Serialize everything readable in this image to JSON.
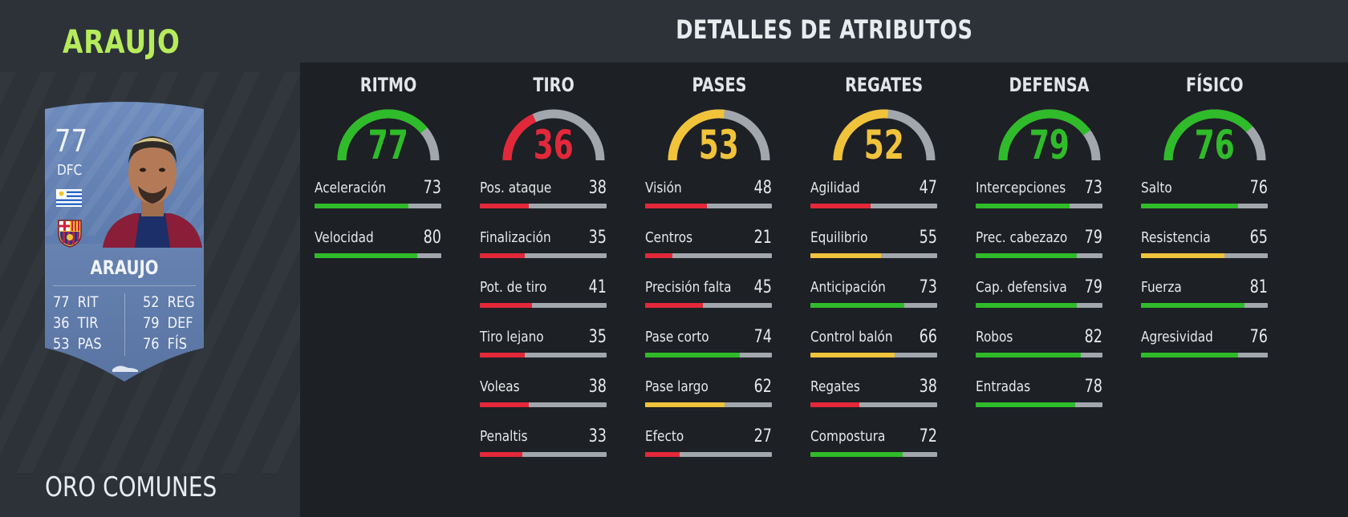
{
  "player": {
    "name": "ARAUJO",
    "card_type": "ORO COMUNES"
  },
  "card": {
    "rating": "77",
    "position": "DFC",
    "name": "ARAUJO",
    "stats_left": [
      {
        "value": "77",
        "label": "RIT"
      },
      {
        "value": "36",
        "label": "TIR"
      },
      {
        "value": "53",
        "label": "PAS"
      }
    ],
    "stats_right": [
      {
        "value": "52",
        "label": "REG"
      },
      {
        "value": "79",
        "label": "DEF"
      },
      {
        "value": "76",
        "label": "FÍS"
      }
    ]
  },
  "section_title": "DETALLES DE ATRIBUTOS",
  "colors": {
    "green": "#2fbb2a",
    "yellow": "#f0c33b",
    "red": "#e3283a",
    "track": "#a2a7ad",
    "name_green": "#b6ec5b",
    "card_blue": "#5c79a8"
  },
  "categories": [
    {
      "title": "RITMO",
      "value": 77,
      "attributes": [
        {
          "name": "Aceleración",
          "value": 73
        },
        {
          "name": "Velocidad",
          "value": 80
        }
      ]
    },
    {
      "title": "TIRO",
      "value": 36,
      "attributes": [
        {
          "name": "Pos. ataque",
          "value": 38
        },
        {
          "name": "Finalización",
          "value": 35
        },
        {
          "name": "Pot. de tiro",
          "value": 41
        },
        {
          "name": "Tiro lejano",
          "value": 35
        },
        {
          "name": "Voleas",
          "value": 38
        },
        {
          "name": "Penaltis",
          "value": 33
        }
      ]
    },
    {
      "title": "PASES",
      "value": 53,
      "attributes": [
        {
          "name": "Visión",
          "value": 48
        },
        {
          "name": "Centros",
          "value": 21
        },
        {
          "name": "Precisión falta",
          "value": 45
        },
        {
          "name": "Pase corto",
          "value": 74
        },
        {
          "name": "Pase largo",
          "value": 62
        },
        {
          "name": "Efecto",
          "value": 27
        }
      ]
    },
    {
      "title": "REGATES",
      "value": 52,
      "attributes": [
        {
          "name": "Agilidad",
          "value": 47
        },
        {
          "name": "Equilibrio",
          "value": 55
        },
        {
          "name": "Anticipación",
          "value": 73
        },
        {
          "name": "Control balón",
          "value": 66
        },
        {
          "name": "Regates",
          "value": 38
        },
        {
          "name": "Compostura",
          "value": 72
        }
      ]
    },
    {
      "title": "DEFENSA",
      "value": 79,
      "attributes": [
        {
          "name": "Intercepciones",
          "value": 73
        },
        {
          "name": "Prec. cabezazo",
          "value": 79
        },
        {
          "name": "Cap. defensiva",
          "value": 79
        },
        {
          "name": "Robos",
          "value": 82
        },
        {
          "name": "Entradas",
          "value": 78
        }
      ]
    },
    {
      "title": "FÍSICO",
      "value": 76,
      "attributes": [
        {
          "name": "Salto",
          "value": 76
        },
        {
          "name": "Resistencia",
          "value": 65
        },
        {
          "name": "Fuerza",
          "value": 81
        },
        {
          "name": "Agresividad",
          "value": 76
        }
      ]
    }
  ]
}
